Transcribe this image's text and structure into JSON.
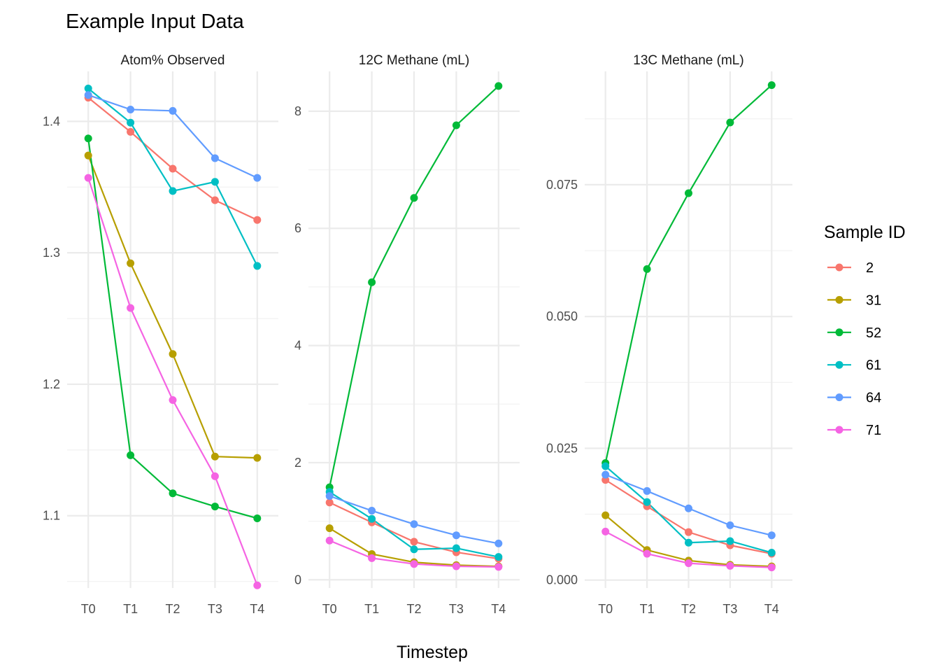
{
  "chart_data": {
    "type": "line",
    "title": "Example Input Data",
    "xlabel": "Timestep",
    "legend": {
      "title": "Sample ID",
      "placement": "right"
    },
    "categories": [
      "T0",
      "T1",
      "T2",
      "T3",
      "T4"
    ],
    "colors": {
      "2": "#F8766D",
      "31": "#B79F00",
      "52": "#00BA38",
      "61": "#00BFC4",
      "64": "#619CFF",
      "71": "#F564E3"
    },
    "grid": true,
    "panels": [
      {
        "label": "Atom% Observed",
        "ylim": [
          1.045,
          1.438
        ],
        "yticks": [
          1.1,
          1.2,
          1.3,
          1.4
        ],
        "ytick_labels": [
          "1.1",
          "1.2",
          "1.3",
          "1.4"
        ],
        "series": [
          {
            "name": "2",
            "values": [
              1.418,
              1.392,
              1.364,
              1.34,
              1.325
            ]
          },
          {
            "name": "31",
            "values": [
              1.374,
              1.292,
              1.223,
              1.145,
              1.144
            ]
          },
          {
            "name": "52",
            "values": [
              1.387,
              1.146,
              1.117,
              1.107,
              1.098
            ]
          },
          {
            "name": "61",
            "values": [
              1.425,
              1.399,
              1.347,
              1.354,
              1.29
            ]
          },
          {
            "name": "64",
            "values": [
              1.42,
              1.409,
              1.408,
              1.372,
              1.357
            ]
          },
          {
            "name": "71",
            "values": [
              1.357,
              1.258,
              1.188,
              1.13,
              1.047
            ]
          }
        ]
      },
      {
        "label": "12C Methane (mL)",
        "ylim": [
          -0.14,
          8.68
        ],
        "yticks": [
          0,
          2,
          4,
          6,
          8
        ],
        "ytick_labels": [
          "0",
          "2",
          "4",
          "6",
          "8"
        ],
        "series": [
          {
            "name": "2",
            "values": [
              1.32,
              0.98,
              0.65,
              0.47,
              0.36
            ]
          },
          {
            "name": "31",
            "values": [
              0.88,
              0.44,
              0.3,
              0.25,
              0.23
            ]
          },
          {
            "name": "52",
            "values": [
              1.58,
              5.08,
              6.52,
              7.76,
              8.43
            ]
          },
          {
            "name": "61",
            "values": [
              1.5,
              1.04,
              0.52,
              0.54,
              0.39
            ]
          },
          {
            "name": "64",
            "values": [
              1.43,
              1.18,
              0.95,
              0.76,
              0.62
            ]
          },
          {
            "name": "71",
            "values": [
              0.67,
              0.37,
              0.27,
              0.23,
              0.22
            ]
          }
        ]
      },
      {
        "label": "13C Methane (mL)",
        "ylim": [
          -0.0015,
          0.0965
        ],
        "yticks": [
          0,
          0.025,
          0.05,
          0.075
        ],
        "ytick_labels": [
          "0.000",
          "0.025",
          "0.050",
          "0.075"
        ],
        "series": [
          {
            "name": "2",
            "values": [
              0.019,
              0.014,
              0.0091,
              0.0066,
              0.005
            ]
          },
          {
            "name": "31",
            "values": [
              0.0123,
              0.0057,
              0.0037,
              0.0029,
              0.0026
            ]
          },
          {
            "name": "52",
            "values": [
              0.0222,
              0.059,
              0.0734,
              0.0868,
              0.0939
            ]
          },
          {
            "name": "61",
            "values": [
              0.0216,
              0.0148,
              0.0071,
              0.0074,
              0.0052
            ]
          },
          {
            "name": "64",
            "values": [
              0.02,
              0.0169,
              0.0136,
              0.0104,
              0.0085
            ]
          },
          {
            "name": "71",
            "values": [
              0.0092,
              0.005,
              0.0032,
              0.0027,
              0.0024
            ]
          }
        ]
      }
    ]
  }
}
